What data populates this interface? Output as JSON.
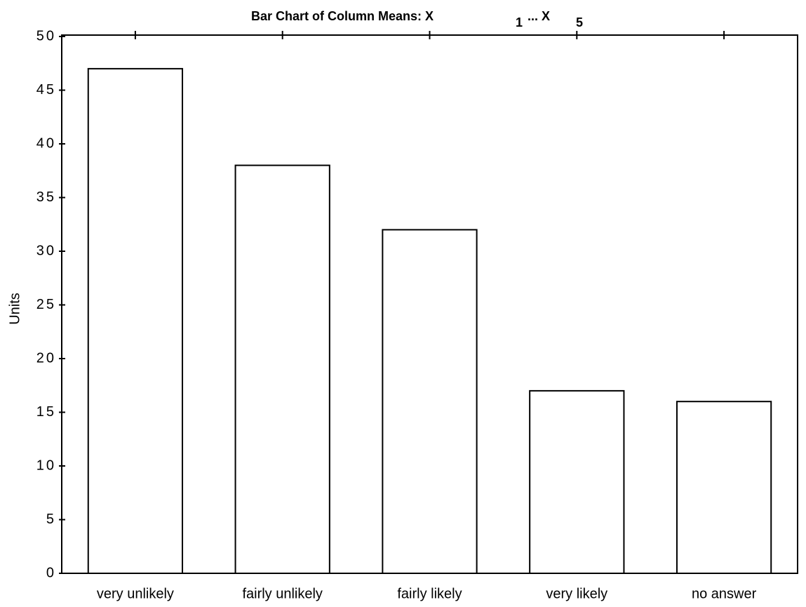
{
  "chart_data": {
    "type": "bar",
    "title_parts": [
      "Bar Chart of Column Means: X",
      "1",
      "... X",
      "5"
    ],
    "ylabel": "Units",
    "categories": [
      "very unlikely",
      "fairly unlikely",
      "fairly likely",
      "very likely",
      "no answer"
    ],
    "values": [
      47,
      38,
      32,
      17,
      16
    ],
    "color": "#ffffff",
    "ylim": [
      0,
      50
    ],
    "yticks": [
      0,
      5,
      10,
      15,
      20,
      25,
      30,
      35,
      40,
      45,
      50
    ],
    "grid": false
  }
}
